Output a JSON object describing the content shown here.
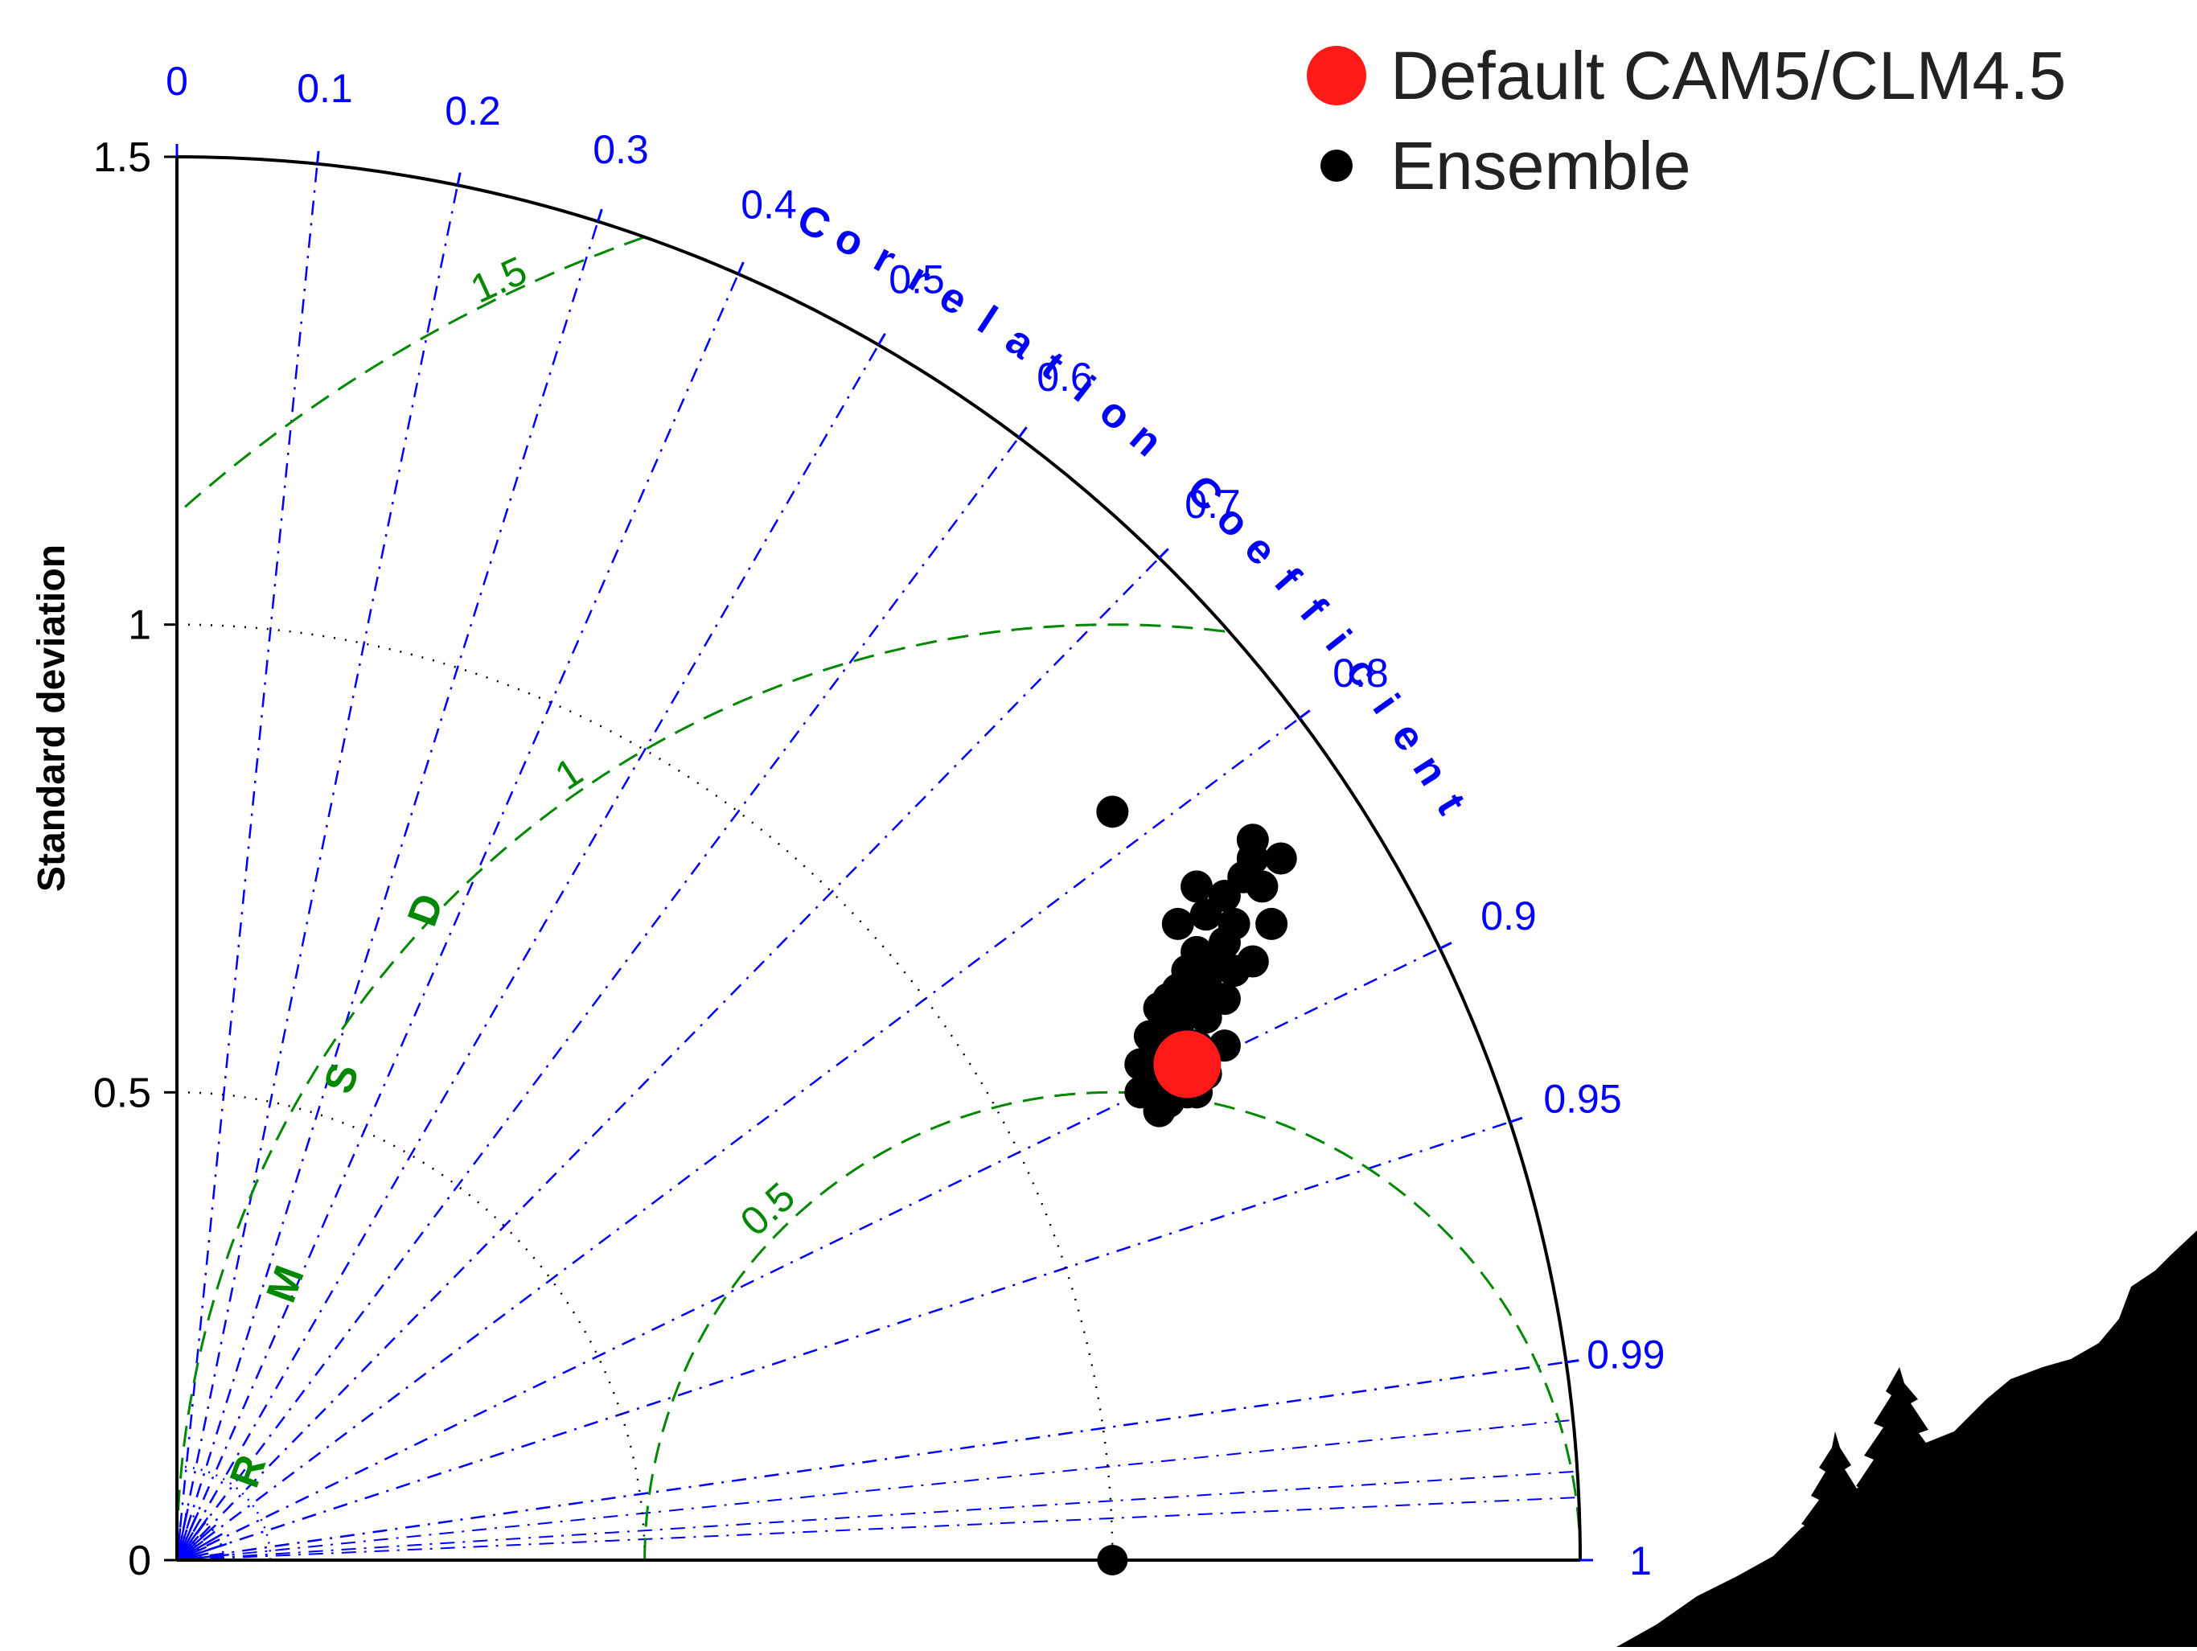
{
  "colors": {
    "correlation": "#0000ff",
    "rmsd": "#008800",
    "std_arc": "#000000",
    "default_point": "#ff1a1a",
    "ensemble_point": "#000000"
  },
  "legend": {
    "default_label": "Default CAM5/CLM4.5",
    "ensemble_label": "Ensemble"
  },
  "chart_data": {
    "type": "scatter",
    "diagram": "taylor",
    "ylabel": "Standard deviation",
    "correlation_label": "Correlation Coefficient",
    "rmsd_label": "RMSD",
    "std_ticks": [
      "0",
      "0.5",
      "1",
      "1.5"
    ],
    "std_tick_values": [
      0,
      0.5,
      1,
      1.5
    ],
    "std_max": 1.5,
    "reference_std": 1,
    "correlation_ticks": [
      "0",
      "0.1",
      "0.2",
      "0.3",
      "0.4",
      "0.5",
      "0.6",
      "0.7",
      "0.8",
      "0.9",
      "0.95",
      "0.99",
      "1"
    ],
    "correlation_values": [
      0,
      0.1,
      0.2,
      0.3,
      0.4,
      0.5,
      0.6,
      0.7,
      0.8,
      0.9,
      0.95,
      0.99,
      1
    ],
    "rmsd_levels": [
      0.5,
      1,
      1.5
    ],
    "rmsd_tick_labels": [
      "0.5",
      "1",
      "1.5"
    ],
    "reference_point": {
      "std": 1,
      "corr": 1
    },
    "series": [
      {
        "name": "Default CAM5/CLM4.5",
        "points": [
          {
            "x": 1.08,
            "y": 0.53
          }
        ]
      },
      {
        "name": "Ensemble",
        "points": [
          {
            "x": 1.0,
            "y": 0.8
          },
          {
            "x": 1.15,
            "y": 0.77
          },
          {
            "x": 1.18,
            "y": 0.75
          },
          {
            "x": 1.15,
            "y": 0.75
          },
          {
            "x": 1.16,
            "y": 0.72
          },
          {
            "x": 1.14,
            "y": 0.73
          },
          {
            "x": 1.09,
            "y": 0.72
          },
          {
            "x": 1.12,
            "y": 0.71
          },
          {
            "x": 1.17,
            "y": 0.68
          },
          {
            "x": 1.07,
            "y": 0.68
          },
          {
            "x": 1.1,
            "y": 0.69
          },
          {
            "x": 1.13,
            "y": 0.68
          },
          {
            "x": 1.12,
            "y": 0.66
          },
          {
            "x": 1.09,
            "y": 0.65
          },
          {
            "x": 1.11,
            "y": 0.64
          },
          {
            "x": 1.15,
            "y": 0.64
          },
          {
            "x": 1.08,
            "y": 0.63
          },
          {
            "x": 1.13,
            "y": 0.63
          },
          {
            "x": 1.1,
            "y": 0.62
          },
          {
            "x": 1.07,
            "y": 0.61
          },
          {
            "x": 1.09,
            "y": 0.6
          },
          {
            "x": 1.12,
            "y": 0.6
          },
          {
            "x": 1.06,
            "y": 0.6
          },
          {
            "x": 1.08,
            "y": 0.59
          },
          {
            "x": 1.05,
            "y": 0.59
          },
          {
            "x": 1.1,
            "y": 0.58
          },
          {
            "x": 1.07,
            "y": 0.57
          },
          {
            "x": 1.04,
            "y": 0.56
          },
          {
            "x": 1.06,
            "y": 0.56
          },
          {
            "x": 1.12,
            "y": 0.55
          },
          {
            "x": 1.09,
            "y": 0.55
          },
          {
            "x": 1.05,
            "y": 0.54
          },
          {
            "x": 1.07,
            "y": 0.53
          },
          {
            "x": 1.03,
            "y": 0.53
          },
          {
            "x": 1.1,
            "y": 0.52
          },
          {
            "x": 1.05,
            "y": 0.51
          },
          {
            "x": 1.08,
            "y": 0.5
          },
          {
            "x": 1.03,
            "y": 0.5
          },
          {
            "x": 1.06,
            "y": 0.49
          },
          {
            "x": 1.05,
            "y": 0.48
          },
          {
            "x": 1.09,
            "y": 0.5
          },
          {
            "x": 1.04,
            "y": 0.52
          }
        ]
      }
    ]
  }
}
